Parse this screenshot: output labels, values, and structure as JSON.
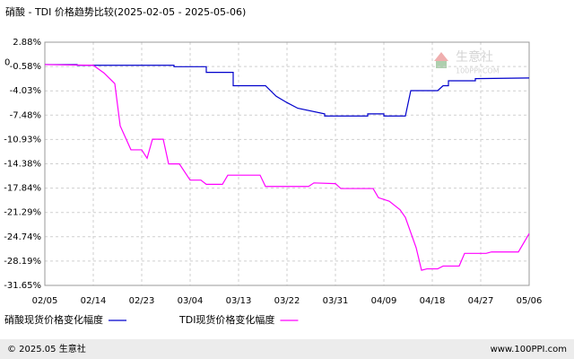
{
  "chart_data": {
    "type": "line",
    "title": "硝酸 - TDI 价格趋势比较(2025-02-05 - 2025-05-06)",
    "watermark": "生意社",
    "watermark_url": "100PPI.COM",
    "footer_left": "© 2025.05 生意社",
    "footer_right": "www.100PPI.com",
    "xticks": [
      "02/05",
      "02/14",
      "02/23",
      "03/04",
      "03/13",
      "03/22",
      "03/31",
      "04/09",
      "04/18",
      "04/27",
      "05/06"
    ],
    "ylim": [
      -31.65,
      2.88
    ],
    "yticks": [
      {
        "value": 2.88,
        "label": "2.88%"
      },
      {
        "value": -0.58,
        "label": "-0.58%"
      },
      {
        "value": -4.03,
        "label": "-4.03%"
      },
      {
        "value": -7.48,
        "label": "-7.48%"
      },
      {
        "value": -10.93,
        "label": "-10.93%"
      },
      {
        "value": -14.38,
        "label": "-14.38%"
      },
      {
        "value": -17.84,
        "label": "-17.84%"
      },
      {
        "value": -21.29,
        "label": "-21.29%"
      },
      {
        "value": -24.74,
        "label": "-24.74%"
      },
      {
        "value": -28.19,
        "label": "-28.19%"
      },
      {
        "value": -31.65,
        "label": "-31.65%"
      }
    ],
    "zero_tick": 0,
    "grid": true,
    "series": [
      {
        "name": "硝酸现货价格变化幅度",
        "color": "#0000cc",
        "x": [
          "02/05",
          "02/11",
          "02/11",
          "03/01",
          "03/01",
          "03/07",
          "03/07",
          "03/12",
          "03/12",
          "03/18",
          "03/20",
          "03/22",
          "03/24",
          "03/29",
          "03/29",
          "04/06",
          "04/06",
          "04/09",
          "04/09",
          "04/13",
          "04/14",
          "04/19",
          "04/20",
          "04/21",
          "04/21",
          "04/26",
          "04/26",
          "05/06"
        ],
        "values": [
          -0.3,
          -0.3,
          -0.4,
          -0.4,
          -0.6,
          -0.6,
          -1.4,
          -1.4,
          -3.3,
          -3.3,
          -4.8,
          -5.7,
          -6.5,
          -7.3,
          -7.6,
          -7.6,
          -7.3,
          -7.3,
          -7.6,
          -7.6,
          -4.0,
          -4.0,
          -3.3,
          -3.3,
          -2.6,
          -2.6,
          -2.3,
          -2.2
        ]
      },
      {
        "name": "TDI现货价格变化幅度",
        "color": "#ff00ff",
        "x": [
          "02/05",
          "02/14",
          "02/16",
          "02/18",
          "02/19",
          "02/21",
          "02/23",
          "02/24",
          "02/25",
          "02/27",
          "02/28",
          "03/02",
          "03/04",
          "03/06",
          "03/07",
          "03/10",
          "03/11",
          "03/17",
          "03/18",
          "03/26",
          "03/27",
          "03/31",
          "04/01",
          "04/07",
          "04/08",
          "04/10",
          "04/12",
          "04/13",
          "04/15",
          "04/16",
          "04/17",
          "04/19",
          "04/20",
          "04/23",
          "04/24",
          "04/28",
          "04/29",
          "05/04",
          "05/06"
        ],
        "values": [
          -0.3,
          -0.4,
          -1.5,
          -3.0,
          -9.0,
          -12.4,
          -12.4,
          -13.6,
          -10.9,
          -10.9,
          -14.4,
          -14.4,
          -16.7,
          -16.7,
          -17.3,
          -17.3,
          -16.0,
          -16.0,
          -17.6,
          -17.6,
          -17.1,
          -17.2,
          -17.9,
          -17.9,
          -19.2,
          -19.7,
          -20.9,
          -22.0,
          -26.3,
          -29.5,
          -29.3,
          -29.3,
          -28.9,
          -28.9,
          -27.1,
          -27.1,
          -26.9,
          -26.9,
          -24.3
        ]
      }
    ]
  }
}
